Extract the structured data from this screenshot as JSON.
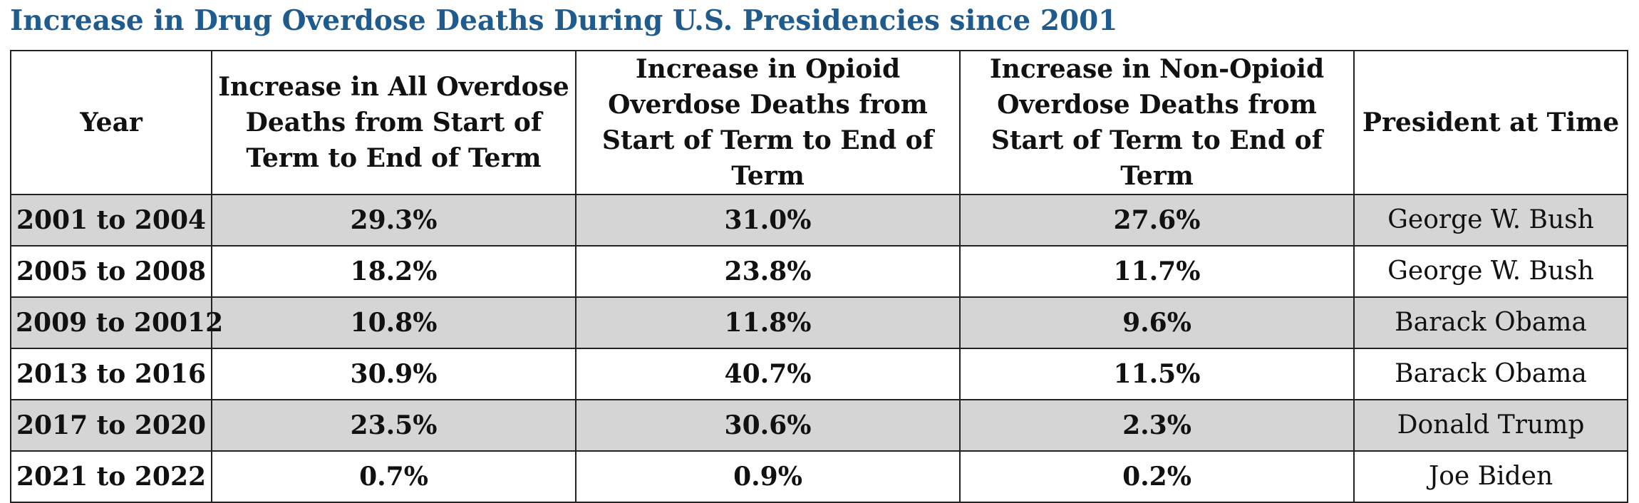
{
  "title": "Increase in Drug Overdose Deaths During U.S. Presidencies since 2001",
  "columns": [
    "Year",
    "Increase in All Overdose Deaths from Start of Term to End of Term",
    "Increase in Opioid Overdose Deaths from Start of Term to End of Term",
    "Increase in Non-Opioid Overdose Deaths from Start of Term to End of Term",
    "President at Time"
  ],
  "rows": [
    {
      "year": "2001 to 2004",
      "all": "29.3%",
      "opioid": "31.0%",
      "nonopioid": "27.6%",
      "president": "George W. Bush"
    },
    {
      "year": "2005 to 2008",
      "all": "18.2%",
      "opioid": "23.8%",
      "nonopioid": "11.7%",
      "president": "George W. Bush"
    },
    {
      "year": "2009 to 20012",
      "all": "10.8%",
      "opioid": "11.8%",
      "nonopioid": "9.6%",
      "president": "Barack Obama"
    },
    {
      "year": "2013 to 2016",
      "all": "30.9%",
      "opioid": "40.7%",
      "nonopioid": "11.5%",
      "president": "Barack Obama"
    },
    {
      "year": "2017 to 2020",
      "all": "23.5%",
      "opioid": "30.6%",
      "nonopioid": "2.3%",
      "president": "Donald Trump"
    },
    {
      "year": "2021 to 2022",
      "all": "0.7%",
      "opioid": "0.9%",
      "nonopioid": "0.2%",
      "president": "Joe Biden"
    }
  ],
  "colors": {
    "title": "#1f5b8c",
    "shaded_row": "#d5d5d5",
    "border": "#222222"
  }
}
